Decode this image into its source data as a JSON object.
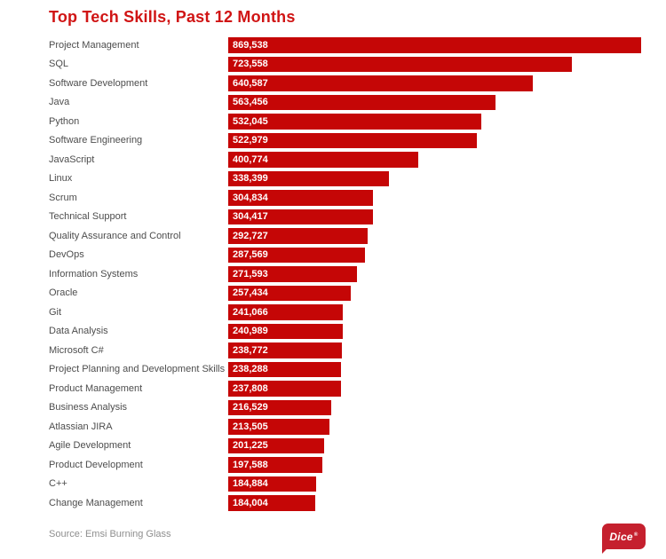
{
  "chart": {
    "title": "Top Tech Skills, Past 12 Months",
    "source": "Source: Emsi Burning Glass"
  },
  "chart_data": {
    "type": "bar",
    "orientation": "horizontal",
    "title": "Top Tech Skills, Past 12 Months",
    "xlabel": "",
    "ylabel": "",
    "xlim": [
      0,
      869538
    ],
    "grid": false,
    "legend": false,
    "bar_color": "#c50606",
    "categories": [
      "Project Management",
      "SQL",
      "Software Development",
      "Java",
      "Python",
      "Software Engineering",
      "JavaScript",
      "Linux",
      "Scrum",
      "Technical Support",
      "Quality Assurance and Control",
      "DevOps",
      "Information Systems",
      "Oracle",
      "Git",
      "Data Analysis",
      "Microsoft C#",
      "Project Planning and Development Skills",
      "Product Management",
      "Business Analysis",
      "Atlassian JIRA",
      "Agile Development",
      "Product Development",
      "C++",
      "Change Management"
    ],
    "values": [
      869538,
      723558,
      640587,
      563456,
      532045,
      522979,
      400774,
      338399,
      304834,
      304417,
      292727,
      287569,
      271593,
      257434,
      241066,
      240989,
      238772,
      238288,
      237808,
      216529,
      213505,
      201225,
      197588,
      184884,
      184004
    ],
    "value_labels": [
      "869,538",
      "723,558",
      "640,587",
      "563,456",
      "532,045",
      "522,979",
      "400,774",
      "338,399",
      "304,834",
      "304,417",
      "292,727",
      "287,569",
      "271,593",
      "257,434",
      "241,066",
      "240,989",
      "238,772",
      "238,288",
      "237,808",
      "216,529",
      "213,505",
      "201,225",
      "197,588",
      "184,884",
      "184,004"
    ]
  },
  "footer": {
    "logo_text": "Dice",
    "logo_registered": "®"
  },
  "colors": {
    "title": "#d01414",
    "bar": "#c50606",
    "label": "#4d4d4d",
    "source": "#8e8e8e",
    "logo": "#c5202e"
  }
}
